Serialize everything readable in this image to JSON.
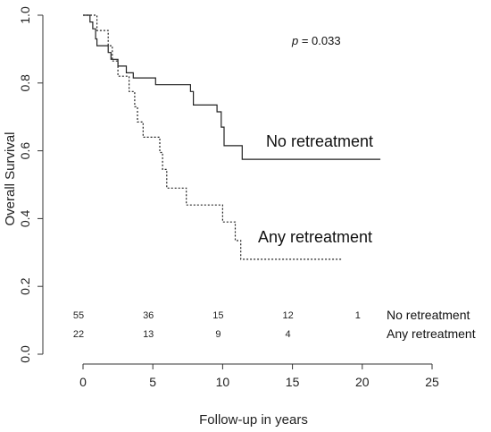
{
  "chart_data": {
    "type": "line",
    "title": "",
    "xlabel": "Follow-up in years",
    "ylabel": "Overall Survival",
    "xlim": [
      0,
      25
    ],
    "ylim": [
      0.0,
      1.0
    ],
    "x_ticks": [
      "0",
      "5",
      "10",
      "15",
      "20",
      "25"
    ],
    "y_ticks": [
      "0.0",
      "0.2",
      "0.4",
      "0.6",
      "0.8",
      "1.0"
    ],
    "grid": false,
    "annotation": {
      "p_label": "p",
      "p_text": " = 0.033"
    },
    "series": [
      {
        "name": "No retreatment",
        "style": "solid",
        "steps": [
          [
            0.0,
            1.0
          ],
          [
            0.5,
            0.98
          ],
          [
            0.7,
            0.96
          ],
          [
            0.9,
            0.93
          ],
          [
            1.0,
            0.91
          ],
          [
            1.8,
            0.89
          ],
          [
            2.0,
            0.87
          ],
          [
            2.5,
            0.85
          ],
          [
            3.1,
            0.83
          ],
          [
            3.6,
            0.815
          ],
          [
            5.2,
            0.795
          ],
          [
            7.7,
            0.775
          ],
          [
            7.9,
            0.735
          ],
          [
            9.6,
            0.715
          ],
          [
            9.9,
            0.67
          ],
          [
            10.1,
            0.615
          ],
          [
            11.4,
            0.575
          ],
          [
            21.3,
            0.575
          ]
        ]
      },
      {
        "name": "Any retreatment",
        "style": "dotted",
        "steps": [
          [
            0.0,
            1.0
          ],
          [
            1.0,
            0.955
          ],
          [
            1.8,
            0.91
          ],
          [
            2.1,
            0.865
          ],
          [
            2.5,
            0.82
          ],
          [
            3.3,
            0.775
          ],
          [
            3.7,
            0.73
          ],
          [
            3.9,
            0.685
          ],
          [
            4.3,
            0.64
          ],
          [
            5.5,
            0.595
          ],
          [
            5.7,
            0.545
          ],
          [
            6.0,
            0.49
          ],
          [
            7.4,
            0.44
          ],
          [
            10.0,
            0.39
          ],
          [
            10.9,
            0.335
          ],
          [
            11.3,
            0.28
          ],
          [
            18.6,
            0.28
          ]
        ]
      }
    ],
    "risk_table": {
      "time_points": [
        0,
        5,
        10,
        15,
        20
      ],
      "rows": [
        {
          "name": "No retreatment",
          "counts": [
            "55",
            "36",
            "15",
            "12",
            "1"
          ]
        },
        {
          "name": "Any retreatment",
          "counts": [
            "22",
            "13",
            "9",
            "4",
            ""
          ]
        }
      ]
    }
  }
}
